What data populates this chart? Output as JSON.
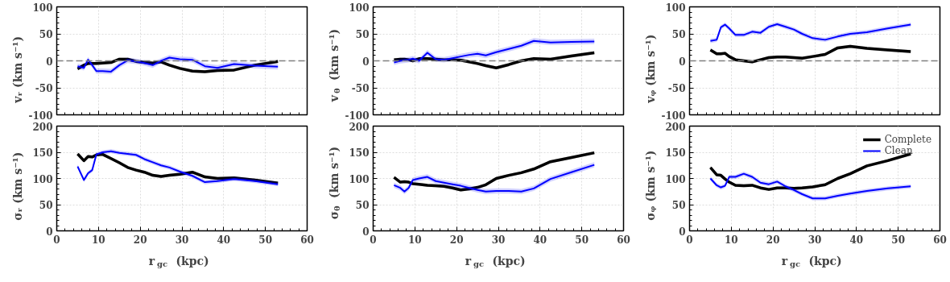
{
  "chart_data": [
    {
      "type": "line",
      "ylabel": "vᵣ (km s⁻¹)",
      "x": [
        5,
        6.5,
        7.5,
        8.5,
        9.5,
        11,
        13,
        15,
        17,
        19,
        21,
        23,
        25,
        27,
        29.5,
        32.5,
        35.5,
        38.5,
        42.5,
        47.5,
        53
      ],
      "xlim": [
        0,
        60
      ],
      "xticks": [
        0,
        10,
        20,
        30,
        40,
        50,
        60
      ],
      "ylim": [
        -100,
        100
      ],
      "yticks": [
        -100,
        -50,
        0,
        50,
        100
      ],
      "grid": true,
      "legend": false,
      "tick_labels": "y",
      "ref_lines": [
        {
          "axis": "y",
          "value": 0,
          "color": "#808080",
          "line_style": "dashed"
        }
      ],
      "series": [
        {
          "color": "#000000",
          "values": [
            -15,
            -8,
            -5,
            -5,
            -5,
            -4,
            -3,
            3,
            3,
            -1,
            -3,
            -4,
            -2,
            -8,
            -14,
            -19,
            -20,
            -18,
            -17,
            -8,
            -1
          ],
          "lower": [
            -18,
            -11,
            -8,
            -8,
            -8,
            -7,
            -6,
            0,
            0,
            -4,
            -6,
            -7,
            -5,
            -11,
            -17,
            -22,
            -23,
            -21,
            -20,
            -11,
            -4
          ],
          "upper": [
            -12,
            -5,
            -2,
            -2,
            -2,
            -1,
            0,
            6,
            6,
            2,
            0,
            -1,
            1,
            -5,
            -11,
            -16,
            -17,
            -15,
            -14,
            -5,
            2
          ]
        },
        {
          "color": "#0000ff",
          "values": [
            -10,
            -13,
            2,
            -8,
            -19,
            -19,
            -20,
            -8,
            1,
            -1,
            -4,
            -8,
            0,
            6,
            3,
            2,
            -10,
            -13,
            -6,
            -9,
            -11
          ],
          "lower": [
            -15,
            -18,
            -3,
            -13,
            -24,
            -24,
            -25,
            -13,
            -4,
            -6,
            -9,
            -13,
            -5,
            1,
            -2,
            -3,
            -15,
            -18,
            -11,
            -14,
            -16
          ],
          "upper": [
            -5,
            -8,
            7,
            -3,
            -14,
            -14,
            -15,
            -3,
            6,
            4,
            1,
            -3,
            5,
            11,
            8,
            7,
            -5,
            -8,
            -1,
            -4,
            -6
          ]
        }
      ]
    },
    {
      "type": "line",
      "ylabel": "v$_{θ}$ (km s⁻¹)",
      "x": [
        5,
        6.5,
        7.5,
        8.5,
        9.5,
        11,
        13,
        15,
        17,
        19,
        21,
        23,
        25,
        27,
        29.5,
        32.5,
        35.5,
        38.5,
        42.5,
        47.5,
        53
      ],
      "xlim": [
        0,
        60
      ],
      "xticks": [
        0,
        10,
        20,
        30,
        40,
        50,
        60
      ],
      "ylim": [
        -100,
        100
      ],
      "yticks": [
        -100,
        -50,
        0,
        50,
        100
      ],
      "grid": true,
      "legend": false,
      "tick_labels": "y",
      "ref_lines": [
        {
          "axis": "y",
          "value": 0,
          "color": "#808080",
          "line_style": "dashed"
        }
      ],
      "series": [
        {
          "color": "#000000",
          "values": [
            2,
            3,
            3,
            2,
            0,
            4,
            4,
            3,
            2,
            2,
            1,
            -2,
            -5,
            -9,
            -13,
            -7,
            0,
            4,
            3,
            9,
            15
          ],
          "lower": [
            -1,
            0,
            0,
            -1,
            -3,
            1,
            1,
            0,
            -1,
            -1,
            -2,
            -5,
            -8,
            -12,
            -16,
            -10,
            -3,
            1,
            0,
            6,
            12
          ],
          "upper": [
            5,
            6,
            6,
            5,
            3,
            7,
            7,
            6,
            5,
            5,
            4,
            1,
            -2,
            -6,
            -10,
            -4,
            3,
            7,
            6,
            12,
            18
          ]
        },
        {
          "color": "#0000ff",
          "values": [
            -3,
            0,
            1,
            2,
            4,
            0,
            15,
            3,
            2,
            5,
            8,
            11,
            13,
            10,
            16,
            22,
            28,
            37,
            34,
            35,
            36
          ],
          "lower": [
            -8,
            -5,
            -4,
            -3,
            -1,
            -5,
            10,
            -2,
            -3,
            0,
            3,
            6,
            8,
            5,
            11,
            17,
            23,
            32,
            29,
            30,
            31
          ],
          "upper": [
            2,
            5,
            6,
            7,
            9,
            5,
            20,
            8,
            7,
            10,
            13,
            16,
            18,
            15,
            21,
            27,
            33,
            42,
            39,
            40,
            41
          ]
        }
      ]
    },
    {
      "type": "line",
      "ylabel": "vᵩ (km s⁻¹)",
      "x": [
        5,
        6.5,
        7.5,
        8.5,
        9.5,
        11,
        13,
        15,
        17,
        19,
        21,
        23,
        25,
        27,
        29.5,
        32.5,
        35.5,
        38.5,
        42.5,
        47.5,
        53
      ],
      "xlim": [
        0,
        60
      ],
      "xticks": [
        0,
        10,
        20,
        30,
        40,
        50,
        60
      ],
      "ylim": [
        -100,
        100
      ],
      "yticks": [
        -100,
        -50,
        0,
        50,
        100
      ],
      "grid": true,
      "legend": false,
      "tick_labels": "y",
      "ref_lines": [
        {
          "axis": "y",
          "value": 0,
          "color": "#808080",
          "line_style": "dashed"
        }
      ],
      "series": [
        {
          "color": "#000000",
          "values": [
            20,
            13,
            13,
            14,
            8,
            2,
            0,
            -2,
            2,
            6,
            7,
            7,
            6,
            5,
            8,
            12,
            24,
            27,
            23,
            20,
            17
          ],
          "lower": [
            17,
            10,
            10,
            11,
            5,
            -1,
            -3,
            -5,
            -1,
            3,
            4,
            4,
            3,
            2,
            5,
            9,
            21,
            24,
            20,
            17,
            14
          ],
          "upper": [
            23,
            16,
            16,
            17,
            11,
            5,
            3,
            1,
            5,
            9,
            10,
            10,
            9,
            8,
            11,
            15,
            27,
            30,
            26,
            23,
            20
          ]
        },
        {
          "color": "#0000ff",
          "values": [
            37,
            39,
            62,
            67,
            60,
            48,
            48,
            54,
            52,
            63,
            68,
            63,
            58,
            50,
            42,
            39,
            45,
            50,
            53,
            60,
            67
          ],
          "lower": [
            33,
            35,
            58,
            63,
            56,
            44,
            44,
            50,
            48,
            59,
            64,
            59,
            54,
            46,
            38,
            35,
            41,
            46,
            49,
            56,
            63
          ],
          "upper": [
            41,
            43,
            66,
            71,
            64,
            52,
            52,
            58,
            56,
            67,
            72,
            67,
            62,
            54,
            46,
            43,
            49,
            54,
            57,
            64,
            71
          ]
        }
      ]
    },
    {
      "type": "line",
      "ylabel": "σᵣ (km s⁻¹)",
      "xlabel": "r$_{gc}$ (kpc)",
      "x": [
        5,
        6.5,
        7.5,
        8.5,
        9.5,
        11,
        13,
        15,
        17,
        19,
        21,
        23,
        25,
        27,
        29.5,
        32.5,
        35.5,
        38.5,
        42.5,
        47.5,
        53
      ],
      "xlim": [
        0,
        60
      ],
      "xticks": [
        0,
        10,
        20,
        30,
        40,
        50,
        60
      ],
      "ylim": [
        0,
        200
      ],
      "yticks": [
        0,
        50,
        100,
        150,
        200
      ],
      "grid": true,
      "legend": false,
      "series": [
        {
          "color": "#000000",
          "values": [
            147,
            134,
            142,
            141,
            145,
            146,
            138,
            130,
            121,
            116,
            112,
            106,
            104,
            106,
            108,
            112,
            103,
            100,
            101,
            97,
            91
          ],
          "lower": [
            144,
            131,
            139,
            138,
            142,
            143,
            135,
            127,
            118,
            113,
            109,
            103,
            101,
            103,
            105,
            109,
            100,
            97,
            98,
            94,
            88
          ],
          "upper": [
            150,
            137,
            145,
            144,
            148,
            149,
            141,
            133,
            124,
            119,
            115,
            109,
            107,
            109,
            111,
            115,
            106,
            103,
            104,
            100,
            94
          ]
        },
        {
          "color": "#0000ff",
          "values": [
            123,
            97,
            110,
            116,
            146,
            150,
            152,
            149,
            147,
            145,
            137,
            131,
            125,
            121,
            113,
            105,
            93,
            95,
            99,
            95,
            89
          ],
          "lower": [
            119,
            93,
            106,
            112,
            142,
            146,
            148,
            145,
            143,
            141,
            133,
            127,
            121,
            117,
            109,
            101,
            89,
            91,
            95,
            91,
            85
          ],
          "upper": [
            127,
            101,
            114,
            120,
            150,
            154,
            156,
            153,
            151,
            149,
            141,
            135,
            129,
            125,
            117,
            109,
            97,
            99,
            103,
            99,
            93
          ]
        }
      ]
    },
    {
      "type": "line",
      "ylabel": "σ$_{θ}$ (km s⁻¹)",
      "xlabel": "r$_{gc}$ (kpc)",
      "x": [
        5,
        6.5,
        7.5,
        8.5,
        9.5,
        11,
        13,
        15,
        17,
        19,
        21,
        23,
        25,
        27,
        29.5,
        32.5,
        35.5,
        38.5,
        42.5,
        47.5,
        53
      ],
      "xlim": [
        0,
        60
      ],
      "xticks": [
        0,
        10,
        20,
        30,
        40,
        50,
        60
      ],
      "ylim": [
        0,
        200
      ],
      "yticks": [
        0,
        50,
        100,
        150,
        200
      ],
      "grid": true,
      "legend": false,
      "series": [
        {
          "color": "#000000",
          "values": [
            102,
            93,
            94,
            93,
            90,
            89,
            87,
            86,
            85,
            82,
            78,
            80,
            83,
            88,
            100,
            106,
            111,
            118,
            132,
            140,
            149
          ],
          "lower": [
            99,
            90,
            91,
            90,
            87,
            86,
            84,
            83,
            82,
            79,
            75,
            77,
            80,
            85,
            97,
            103,
            108,
            115,
            129,
            137,
            146
          ],
          "upper": [
            105,
            96,
            97,
            96,
            93,
            92,
            90,
            89,
            88,
            85,
            81,
            83,
            86,
            91,
            103,
            109,
            114,
            121,
            135,
            143,
            152
          ]
        },
        {
          "color": "#0000ff",
          "values": [
            87,
            82,
            75,
            82,
            97,
            100,
            103,
            95,
            92,
            89,
            86,
            82,
            78,
            75,
            76,
            76,
            75,
            81,
            99,
            112,
            126
          ],
          "lower": [
            82,
            77,
            70,
            77,
            92,
            95,
            98,
            90,
            87,
            84,
            81,
            77,
            73,
            70,
            71,
            71,
            70,
            76,
            94,
            107,
            121
          ],
          "upper": [
            92,
            87,
            80,
            87,
            102,
            105,
            108,
            100,
            97,
            94,
            91,
            87,
            83,
            80,
            81,
            81,
            80,
            86,
            104,
            117,
            131
          ]
        }
      ]
    },
    {
      "type": "line",
      "ylabel": "σᵩ (km s⁻¹)",
      "xlabel": "r$_{gc}$ (kpc)",
      "x": [
        5,
        6.5,
        7.5,
        8.5,
        9.5,
        11,
        13,
        15,
        17,
        19,
        21,
        23,
        25,
        27,
        29.5,
        32.5,
        35.5,
        38.5,
        42.5,
        47.5,
        53
      ],
      "xlim": [
        0,
        60
      ],
      "xticks": [
        0,
        10,
        20,
        30,
        40,
        50,
        60
      ],
      "ylim": [
        0,
        200
      ],
      "yticks": [
        0,
        50,
        100,
        150,
        200
      ],
      "grid": true,
      "legend": "top right",
      "series": [
        {
          "name": "Complete",
          "color": "#000000",
          "values": [
            121,
            107,
            106,
            99,
            93,
            87,
            86,
            87,
            82,
            79,
            82,
            82,
            81,
            82,
            84,
            88,
            100,
            109,
            124,
            134,
            147
          ],
          "lower": [
            118,
            104,
            103,
            96,
            90,
            84,
            83,
            84,
            79,
            76,
            79,
            79,
            78,
            79,
            81,
            85,
            97,
            106,
            121,
            131,
            144
          ],
          "upper": [
            124,
            110,
            109,
            102,
            96,
            90,
            89,
            90,
            85,
            82,
            85,
            85,
            84,
            85,
            87,
            91,
            103,
            112,
            127,
            137,
            150
          ]
        },
        {
          "name": "Clean",
          "color": "#0000ff",
          "values": [
            100,
            87,
            83,
            86,
            103,
            103,
            109,
            103,
            92,
            89,
            94,
            85,
            78,
            70,
            62,
            62,
            67,
            71,
            76,
            81,
            85
          ],
          "lower": [
            96,
            83,
            79,
            82,
            99,
            99,
            105,
            99,
            88,
            85,
            90,
            81,
            74,
            66,
            58,
            58,
            63,
            67,
            72,
            77,
            81
          ],
          "upper": [
            104,
            91,
            87,
            90,
            107,
            107,
            113,
            107,
            96,
            93,
            98,
            89,
            82,
            74,
            66,
            66,
            71,
            75,
            80,
            85,
            89
          ]
        }
      ]
    }
  ]
}
